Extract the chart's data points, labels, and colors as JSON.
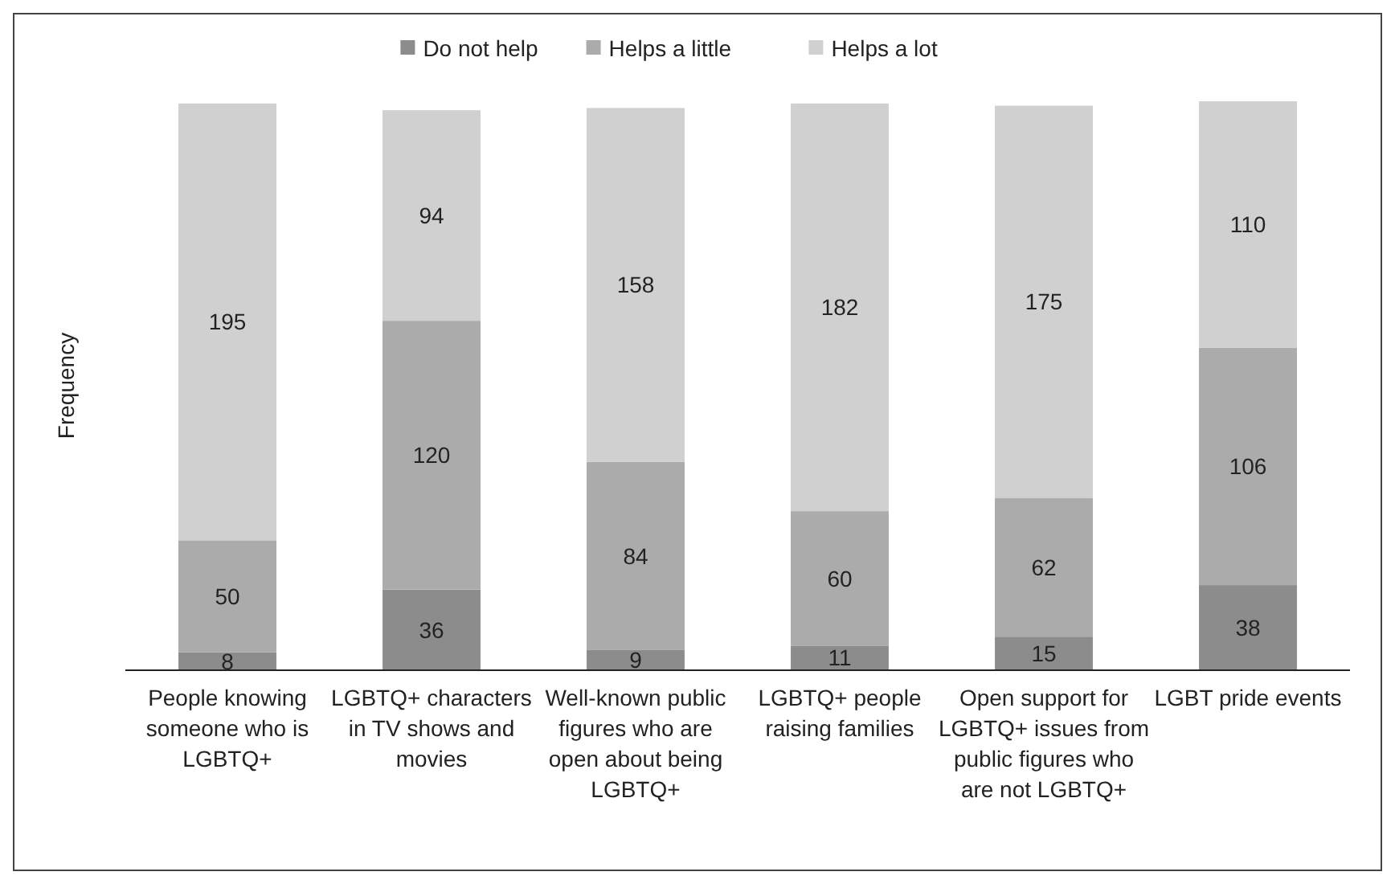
{
  "chart_data": {
    "type": "bar",
    "stacked": true,
    "ylabel": "Frequency",
    "legend": "top",
    "data_labels": true,
    "categories": [
      "People knowing someone who is LGBTQ+",
      "LGBTQ+ characters in TV shows and movies",
      "Well-known public figures who are open about being LGBTQ+",
      "LGBTQ+ people raising families",
      "Open support for LGBTQ+ issues from public figures who are not LGBTQ+",
      "LGBT pride events"
    ],
    "series": [
      {
        "name": "Do not help",
        "color": "#8c8c8c",
        "values": [
          8,
          36,
          9,
          11,
          15,
          38
        ]
      },
      {
        "name": "Helps a little",
        "color": "#ababab",
        "values": [
          50,
          120,
          84,
          60,
          62,
          106
        ]
      },
      {
        "name": "Helps a lot",
        "color": "#d0d0d0",
        "values": [
          195,
          94,
          158,
          182,
          175,
          110
        ]
      }
    ]
  }
}
